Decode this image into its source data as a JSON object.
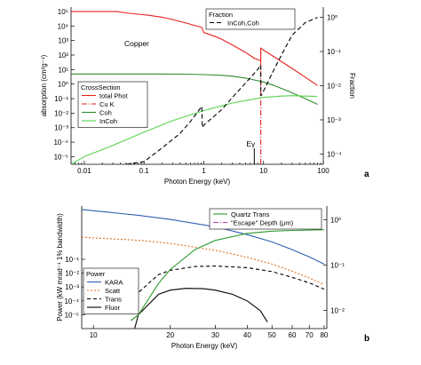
{
  "chart_data": [
    {
      "panel_label": "a",
      "type": "line",
      "xlabel": "Photon Energy (keV)",
      "ylabel_left": "absorption (cm²g⁻¹)",
      "ylabel_right": "Fraction",
      "x_scale": "log",
      "y_scale": "log",
      "xlim": [
        0.006,
        100
      ],
      "ylim_left": [
        3e-06,
        200000.0
      ],
      "ylim_right": [
        5e-05,
        2
      ],
      "x_ticks": [
        {
          "value": 0.01,
          "label": "0.01"
        },
        {
          "value": 0.1,
          "label": "0.1"
        },
        {
          "value": 1,
          "label": "1"
        },
        {
          "value": 10,
          "label": "10"
        },
        {
          "value": 100,
          "label": "100"
        }
      ],
      "y_ticks_left": [
        {
          "value": 100000.0,
          "label": "10⁵"
        },
        {
          "value": 10000.0,
          "label": "10⁴"
        },
        {
          "value": 1000.0,
          "label": "10³"
        },
        {
          "value": 100.0,
          "label": "10²"
        },
        {
          "value": 10.0,
          "label": "10¹"
        },
        {
          "value": 1.0,
          "label": "10⁰"
        },
        {
          "value": 0.1,
          "label": "10⁻¹"
        },
        {
          "value": 0.01,
          "label": "10⁻²"
        },
        {
          "value": 0.001,
          "label": "10⁻³"
        },
        {
          "value": 0.0001,
          "label": "10⁻⁴"
        },
        {
          "value": 1e-05,
          "label": "10⁻⁵"
        }
      ],
      "y_ticks_right": [
        {
          "value": 1,
          "label": "10⁰"
        },
        {
          "value": 0.1,
          "label": "10⁻¹"
        },
        {
          "value": 0.01,
          "label": "10⁻²"
        },
        {
          "value": 0.001,
          "label": "10⁻³"
        },
        {
          "value": 0.0001,
          "label": "10⁻⁴"
        }
      ],
      "annotations": {
        "material": "Copper",
        "edge_marker": "Eγ",
        "edge_marker_x": 7,
        "cu_k_edge_x": 8.98
      },
      "legend_left": {
        "title": "CrossSection",
        "entries": [
          "total Phot",
          "Cu K",
          "Coh",
          "InCoh"
        ]
      },
      "legend_right": {
        "title": "Fraction",
        "entries": [
          "InCoh,Coh"
        ]
      },
      "series": [
        {
          "name": "total Phot",
          "axis": "left",
          "color": "#e8201f",
          "dash": "solid",
          "x": [
            0.006,
            0.012,
            0.025,
            0.035,
            0.05,
            0.08,
            0.12,
            0.2,
            0.3,
            0.5,
            0.7,
            0.93,
            1.0,
            1.5,
            2,
            3,
            5,
            7,
            8.98,
            8.99,
            10,
            15,
            20,
            30,
            50,
            80
          ],
          "y": [
            100000,
            100000,
            100000,
            100000,
            80000,
            65000,
            55000,
            40000,
            28000,
            16000,
            11000,
            8000,
            3500,
            2000,
            1200,
            500,
            150,
            60,
            40,
            300,
            220,
            75,
            35,
            12,
            3,
            0.8
          ]
        },
        {
          "name": "Cu K",
          "axis": "left",
          "color": "#e8201f",
          "dash": "6,2,1,2",
          "x": [
            8.98,
            8.98
          ],
          "y": [
            3e-06,
            300
          ]
        },
        {
          "name": "Coh",
          "axis": "left",
          "color": "#2e8b2e",
          "dash": "solid",
          "x": [
            0.006,
            0.05,
            0.2,
            0.5,
            1,
            2,
            3,
            5,
            8,
            10,
            15,
            20,
            30,
            50,
            80
          ],
          "y": [
            5,
            5,
            5,
            4.8,
            4.5,
            4,
            3.5,
            2.6,
            1.7,
            1.4,
            0.8,
            0.5,
            0.25,
            0.1,
            0.04
          ]
        },
        {
          "name": "InCoh",
          "axis": "left",
          "color": "#58d34f",
          "dash": "solid",
          "x": [
            0.006,
            0.01,
            0.03,
            0.1,
            0.3,
            1,
            3,
            10,
            20,
            30,
            50,
            80
          ],
          "y": [
            3e-06,
            1e-05,
            6e-05,
            0.0005,
            0.003,
            0.015,
            0.05,
            0.12,
            0.15,
            0.16,
            0.15,
            0.14
          ]
        },
        {
          "name": "InCoh,Coh",
          "axis": "right",
          "color": "#000000",
          "dash": "5,3",
          "x": [
            0.05,
            0.1,
            0.2,
            0.4,
            0.6,
            0.93,
            0.94,
            1.0,
            2,
            3,
            5,
            8,
            8.98,
            9.0,
            10,
            15,
            20,
            30,
            50,
            80
          ],
          "y": [
            5e-05,
            6e-05,
            0.00015,
            0.0004,
            0.0009,
            0.0025,
            0.0006,
            0.0007,
            0.002,
            0.0045,
            0.012,
            0.03,
            0.04,
            0.005,
            0.007,
            0.03,
            0.08,
            0.3,
            0.7,
            1.0
          ]
        }
      ]
    },
    {
      "panel_label": "b",
      "type": "line",
      "xlabel": "Photon Energy (keV)",
      "ylabel_left": "Power (kW mrad⁻¹ 1% bandwidth)",
      "x_scale": "log",
      "y_scale": "log",
      "xlim": [
        9,
        82
      ],
      "x_ticks": [
        {
          "value": 10,
          "label": "10"
        },
        {
          "value": 20,
          "label": "20"
        },
        {
          "value": 30,
          "label": "30"
        },
        {
          "value": 40,
          "label": "40"
        },
        {
          "value": 50,
          "label": "50"
        },
        {
          "value": 60,
          "label": "60"
        },
        {
          "value": 70,
          "label": "70"
        },
        {
          "value": 80,
          "label": "80"
        }
      ],
      "y_ticks_left": [
        {
          "value": 0.1,
          "label": "10⁻¹"
        },
        {
          "value": 0.01,
          "label": "10⁻²"
        },
        {
          "value": 0.001,
          "label": "10⁻³"
        },
        {
          "value": 0.0001,
          "label": "10⁻⁴"
        },
        {
          "value": 1e-05,
          "label": "10⁻⁵"
        }
      ],
      "y_ticks_right": [
        {
          "value": 1,
          "label": "10⁰"
        },
        {
          "value": 0.1,
          "label": "10⁻¹"
        },
        {
          "value": 0.01,
          "label": "10⁻²"
        }
      ],
      "legend_left": {
        "title": "Power",
        "entries": [
          "KARA",
          "Scatt",
          "Trans",
          "Fluor"
        ]
      },
      "legend_right": {
        "entries": [
          "Quartz Trans",
          "\"Escape\" Depth (μm)"
        ]
      },
      "series": [
        {
          "name": "KARA",
          "axis": "left",
          "color": "#2f5fb3",
          "dash": "solid",
          "x": [
            9,
            10,
            15,
            20,
            30,
            40,
            50,
            60,
            70,
            80
          ],
          "y": [
            400,
            320,
            150,
            75,
            22,
            6,
            1.8,
            0.5,
            0.15,
            0.045
          ]
        },
        {
          "name": "Scatt",
          "axis": "left",
          "color": "#e07020",
          "dash": "2,2",
          "x": [
            9,
            10,
            15,
            20,
            30,
            40,
            50,
            60,
            70,
            80
          ],
          "y": [
            4,
            3.5,
            2.4,
            1.4,
            0.45,
            0.14,
            0.045,
            0.014,
            0.0045,
            0.0015
          ]
        },
        {
          "name": "Trans",
          "axis": "left",
          "color": "#000000",
          "dash": "4,3",
          "x": [
            14,
            15,
            18,
            20,
            25,
            30,
            40,
            50,
            60,
            70,
            80
          ],
          "y": [
            0.0001,
            0.0004,
            0.008,
            0.016,
            0.03,
            0.033,
            0.025,
            0.013,
            0.005,
            0.002,
            0.0007
          ]
        },
        {
          "name": "Fluor",
          "axis": "left",
          "color": "#000000",
          "dash": "solid",
          "x": [
            14.5,
            15,
            18,
            20,
            23,
            27,
            30,
            35,
            40,
            45,
            48
          ],
          "y": [
            1e-06,
            1e-05,
            0.0003,
            0.0006,
            0.0008,
            0.00075,
            0.0006,
            0.0003,
            0.0001,
            2e-05,
            3e-06
          ]
        },
        {
          "name": "Quartz Trans",
          "axis": "right",
          "color": "#2e9a2e",
          "dash": "solid",
          "x": [
            14,
            15,
            18,
            20,
            25,
            30,
            40,
            50,
            60,
            70,
            80
          ],
          "y": [
            0.006,
            0.008,
            0.04,
            0.08,
            0.22,
            0.35,
            0.5,
            0.56,
            0.58,
            0.59,
            0.6
          ]
        },
        {
          "name": "\"Escape\" Depth (μm)",
          "axis": "right",
          "color": "#c23ab0",
          "dash": "6,2,1,2",
          "x": [
            9,
            10,
            15,
            20,
            30,
            40,
            50,
            60,
            70,
            80
          ],
          "y": [
            2.0,
            2.6,
            4.2,
            5.2,
            6.1,
            6.5,
            6.7,
            6.8,
            6.85,
            6.9
          ]
        }
      ]
    }
  ]
}
